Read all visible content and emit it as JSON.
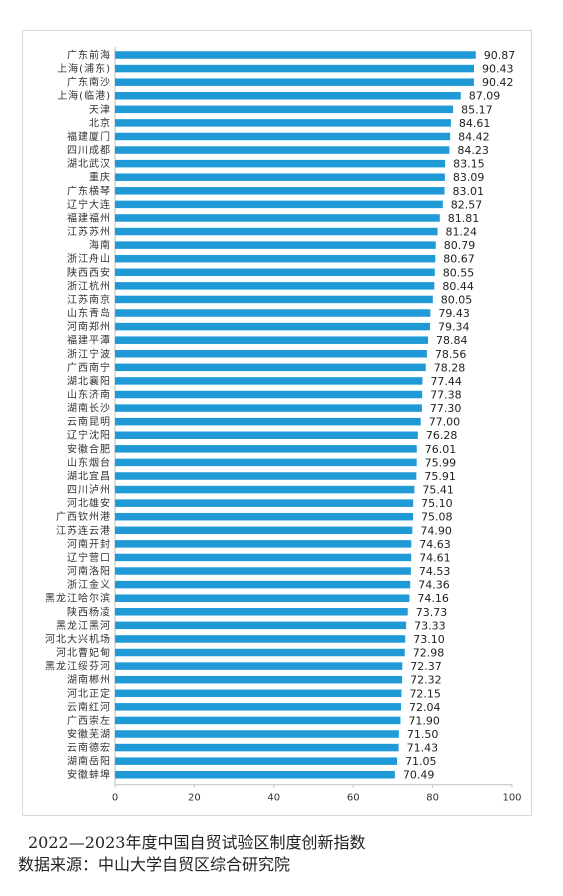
{
  "caption": {
    "title": "2022—2023年度中国自贸试验区制度创新指数",
    "source": "数据来源：中山大学自贸区综合研究院"
  },
  "colors": {
    "bar": "#1f9ad6",
    "grid": "#e0e0e0",
    "axis": "#bfbfbf"
  },
  "chart_data": {
    "type": "bar",
    "orientation": "horizontal",
    "title": "",
    "xlabel": "",
    "ylabel": "",
    "xlim": [
      0,
      100
    ],
    "ticks": [
      0,
      20,
      40,
      60,
      80,
      100
    ],
    "tick_labels": [
      "0",
      "20",
      "40",
      "60",
      "80",
      "100"
    ],
    "grid": false,
    "categories": [
      "广东前海",
      "上海(浦东)",
      "广东南沙",
      "上海(临港)",
      "天津",
      "北京",
      "福建厦门",
      "四川成都",
      "湖北武汉",
      "重庆",
      "广东横琴",
      "辽宁大连",
      "福建福州",
      "江苏苏州",
      "海南",
      "浙江舟山",
      "陕西西安",
      "浙江杭州",
      "江苏南京",
      "山东青岛",
      "河南郑州",
      "福建平潭",
      "浙江宁波",
      "广西南宁",
      "湖北襄阳",
      "山东济南",
      "湖南长沙",
      "云南昆明",
      "辽宁沈阳",
      "安徽合肥",
      "山东烟台",
      "湖北宜昌",
      "四川泸州",
      "河北雄安",
      "广西钦州港",
      "江苏连云港",
      "河南开封",
      "辽宁营口",
      "河南洛阳",
      "浙江金义",
      "黑龙江哈尔滨",
      "陕西杨凌",
      "黑龙江黑河",
      "河北大兴机场",
      "河北曹妃甸",
      "黑龙江绥芬河",
      "湖南郴州",
      "河北正定",
      "云南红河",
      "广西崇左",
      "安徽芜湖",
      "云南德宏",
      "湖南岳阳",
      "安徽蚌埠"
    ],
    "values": [
      90.87,
      90.43,
      90.42,
      87.09,
      85.17,
      84.61,
      84.42,
      84.23,
      83.15,
      83.09,
      83.01,
      82.57,
      81.81,
      81.24,
      80.79,
      80.67,
      80.55,
      80.44,
      80.05,
      79.43,
      79.34,
      78.84,
      78.56,
      78.28,
      77.44,
      77.38,
      77.3,
      77.0,
      76.28,
      76.01,
      75.99,
      75.91,
      75.41,
      75.1,
      75.08,
      74.9,
      74.63,
      74.61,
      74.53,
      74.36,
      74.16,
      73.73,
      73.33,
      73.1,
      72.98,
      72.37,
      72.32,
      72.15,
      72.04,
      71.9,
      71.5,
      71.43,
      71.05,
      70.49
    ],
    "value_labels": [
      "90.87",
      "90.43",
      "90.42",
      "87.09",
      "85.17",
      "84.61",
      "84.42",
      "84.23",
      "83.15",
      "83.09",
      "83.01",
      "82.57",
      "81.81",
      "81.24",
      "80.79",
      "80.67",
      "80.55",
      "80.44",
      "80.05",
      "79.43",
      "79.34",
      "78.84",
      "78.56",
      "78.28",
      "77.44",
      "77.38",
      "77.30",
      "77.00",
      "76.28",
      "76.01",
      "75.99",
      "75.91",
      "75.41",
      "75.10",
      "75.08",
      "74.90",
      "74.63",
      "74.61",
      "74.53",
      "74.36",
      "74.16",
      "73.73",
      "73.33",
      "73.10",
      "72.98",
      "72.37",
      "72.32",
      "72.15",
      "72.04",
      "71.90",
      "71.50",
      "71.43",
      "71.05",
      "70.49"
    ]
  }
}
